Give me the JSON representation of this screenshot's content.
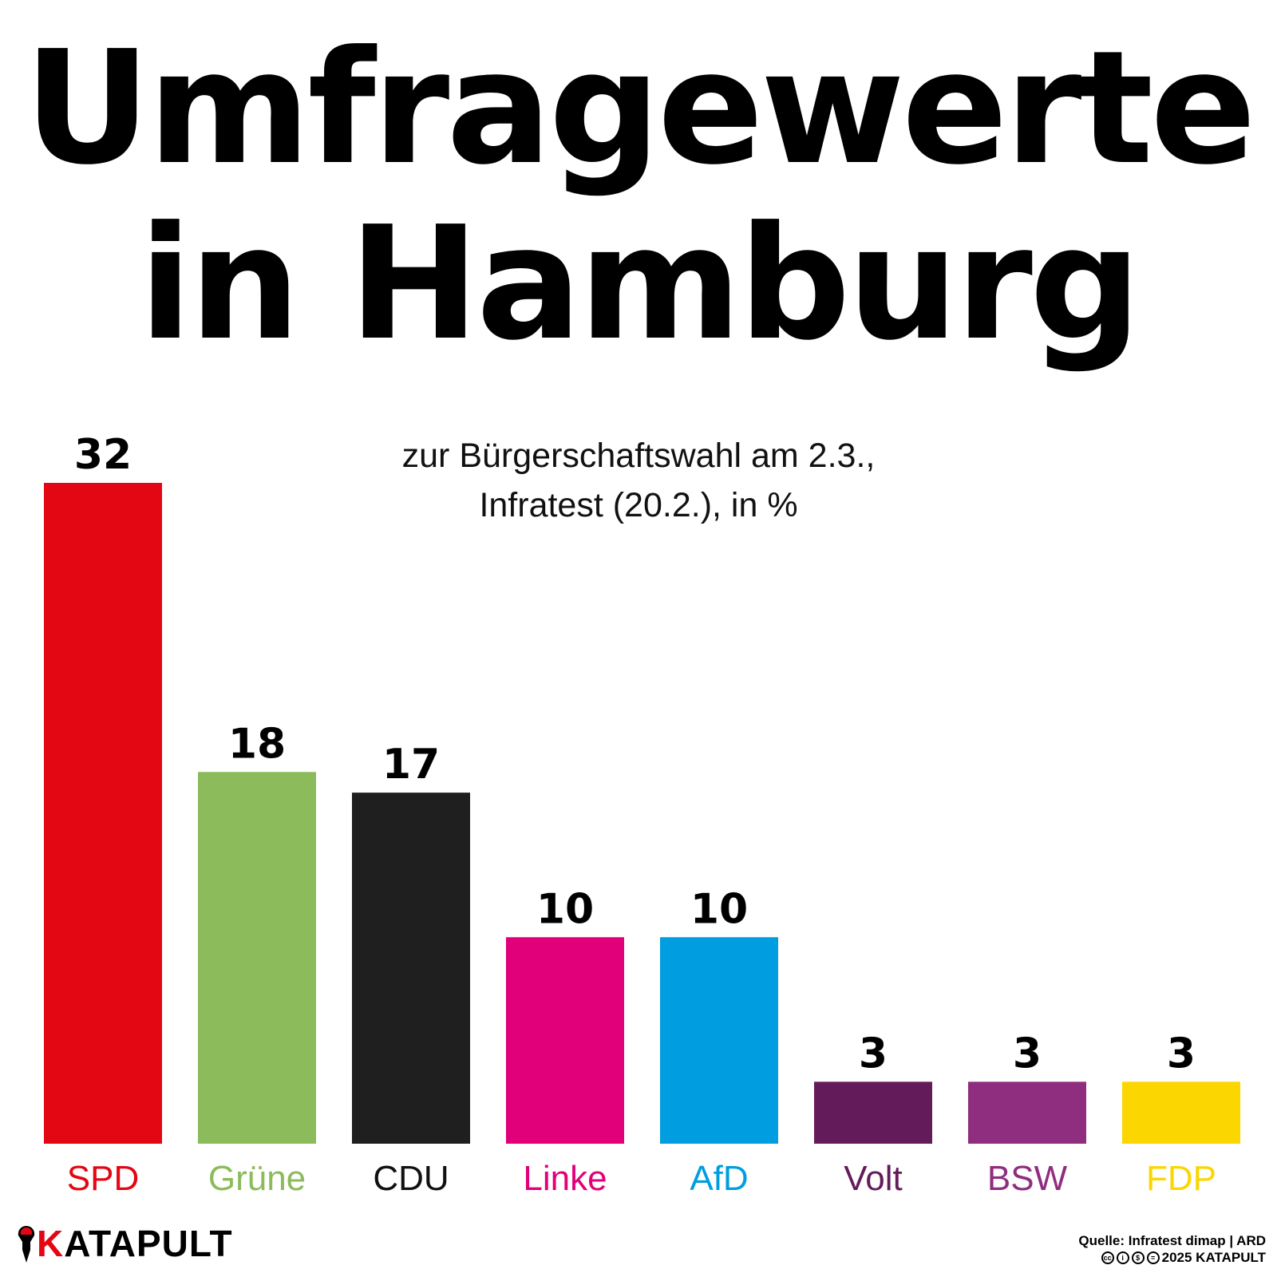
{
  "title": {
    "line1": "Umfragewerte",
    "line2": "in Hamburg"
  },
  "subtitle": {
    "line1": "zur Bürgerschaftswahl am 2.3.,",
    "line2": "Infratest (20.2.), in %"
  },
  "chart_data": {
    "type": "bar",
    "title": "Umfragewerte in Hamburg",
    "subtitle": "zur Bürgerschaftswahl am 2.3., Infratest (20.2.), in %",
    "xlabel": "",
    "ylabel": "",
    "ylim": [
      0,
      32
    ],
    "grid": false,
    "legend": "none",
    "categories": [
      "SPD",
      "Grüne",
      "CDU",
      "Linke",
      "AfD",
      "Volt",
      "BSW",
      "FDP"
    ],
    "values": [
      32,
      18,
      17,
      10,
      10,
      3,
      3,
      3
    ],
    "colors": [
      "#e30613",
      "#8bbb5a",
      "#1f1f1f",
      "#e2007a",
      "#009ee0",
      "#641b5a",
      "#8f2e7e",
      "#fcd600"
    ],
    "label_colors": [
      "#e30613",
      "#8bbb5a",
      "#111111",
      "#e2007a",
      "#009ee0",
      "#641b5a",
      "#8f2e7e",
      "#fcd600"
    ]
  },
  "footer": {
    "logo_k": "K",
    "logo_rest": "ATAPULT",
    "logo_icon": "rocket-icon",
    "source_line": "Quelle: Infratest dimap | ARD",
    "license_line": "2025 KATAPULT",
    "license_icons": [
      "cc-icon",
      "by-icon",
      "nc-icon",
      "nd-icon"
    ],
    "license_glyphs": [
      "cc",
      "i",
      "$",
      "="
    ]
  }
}
